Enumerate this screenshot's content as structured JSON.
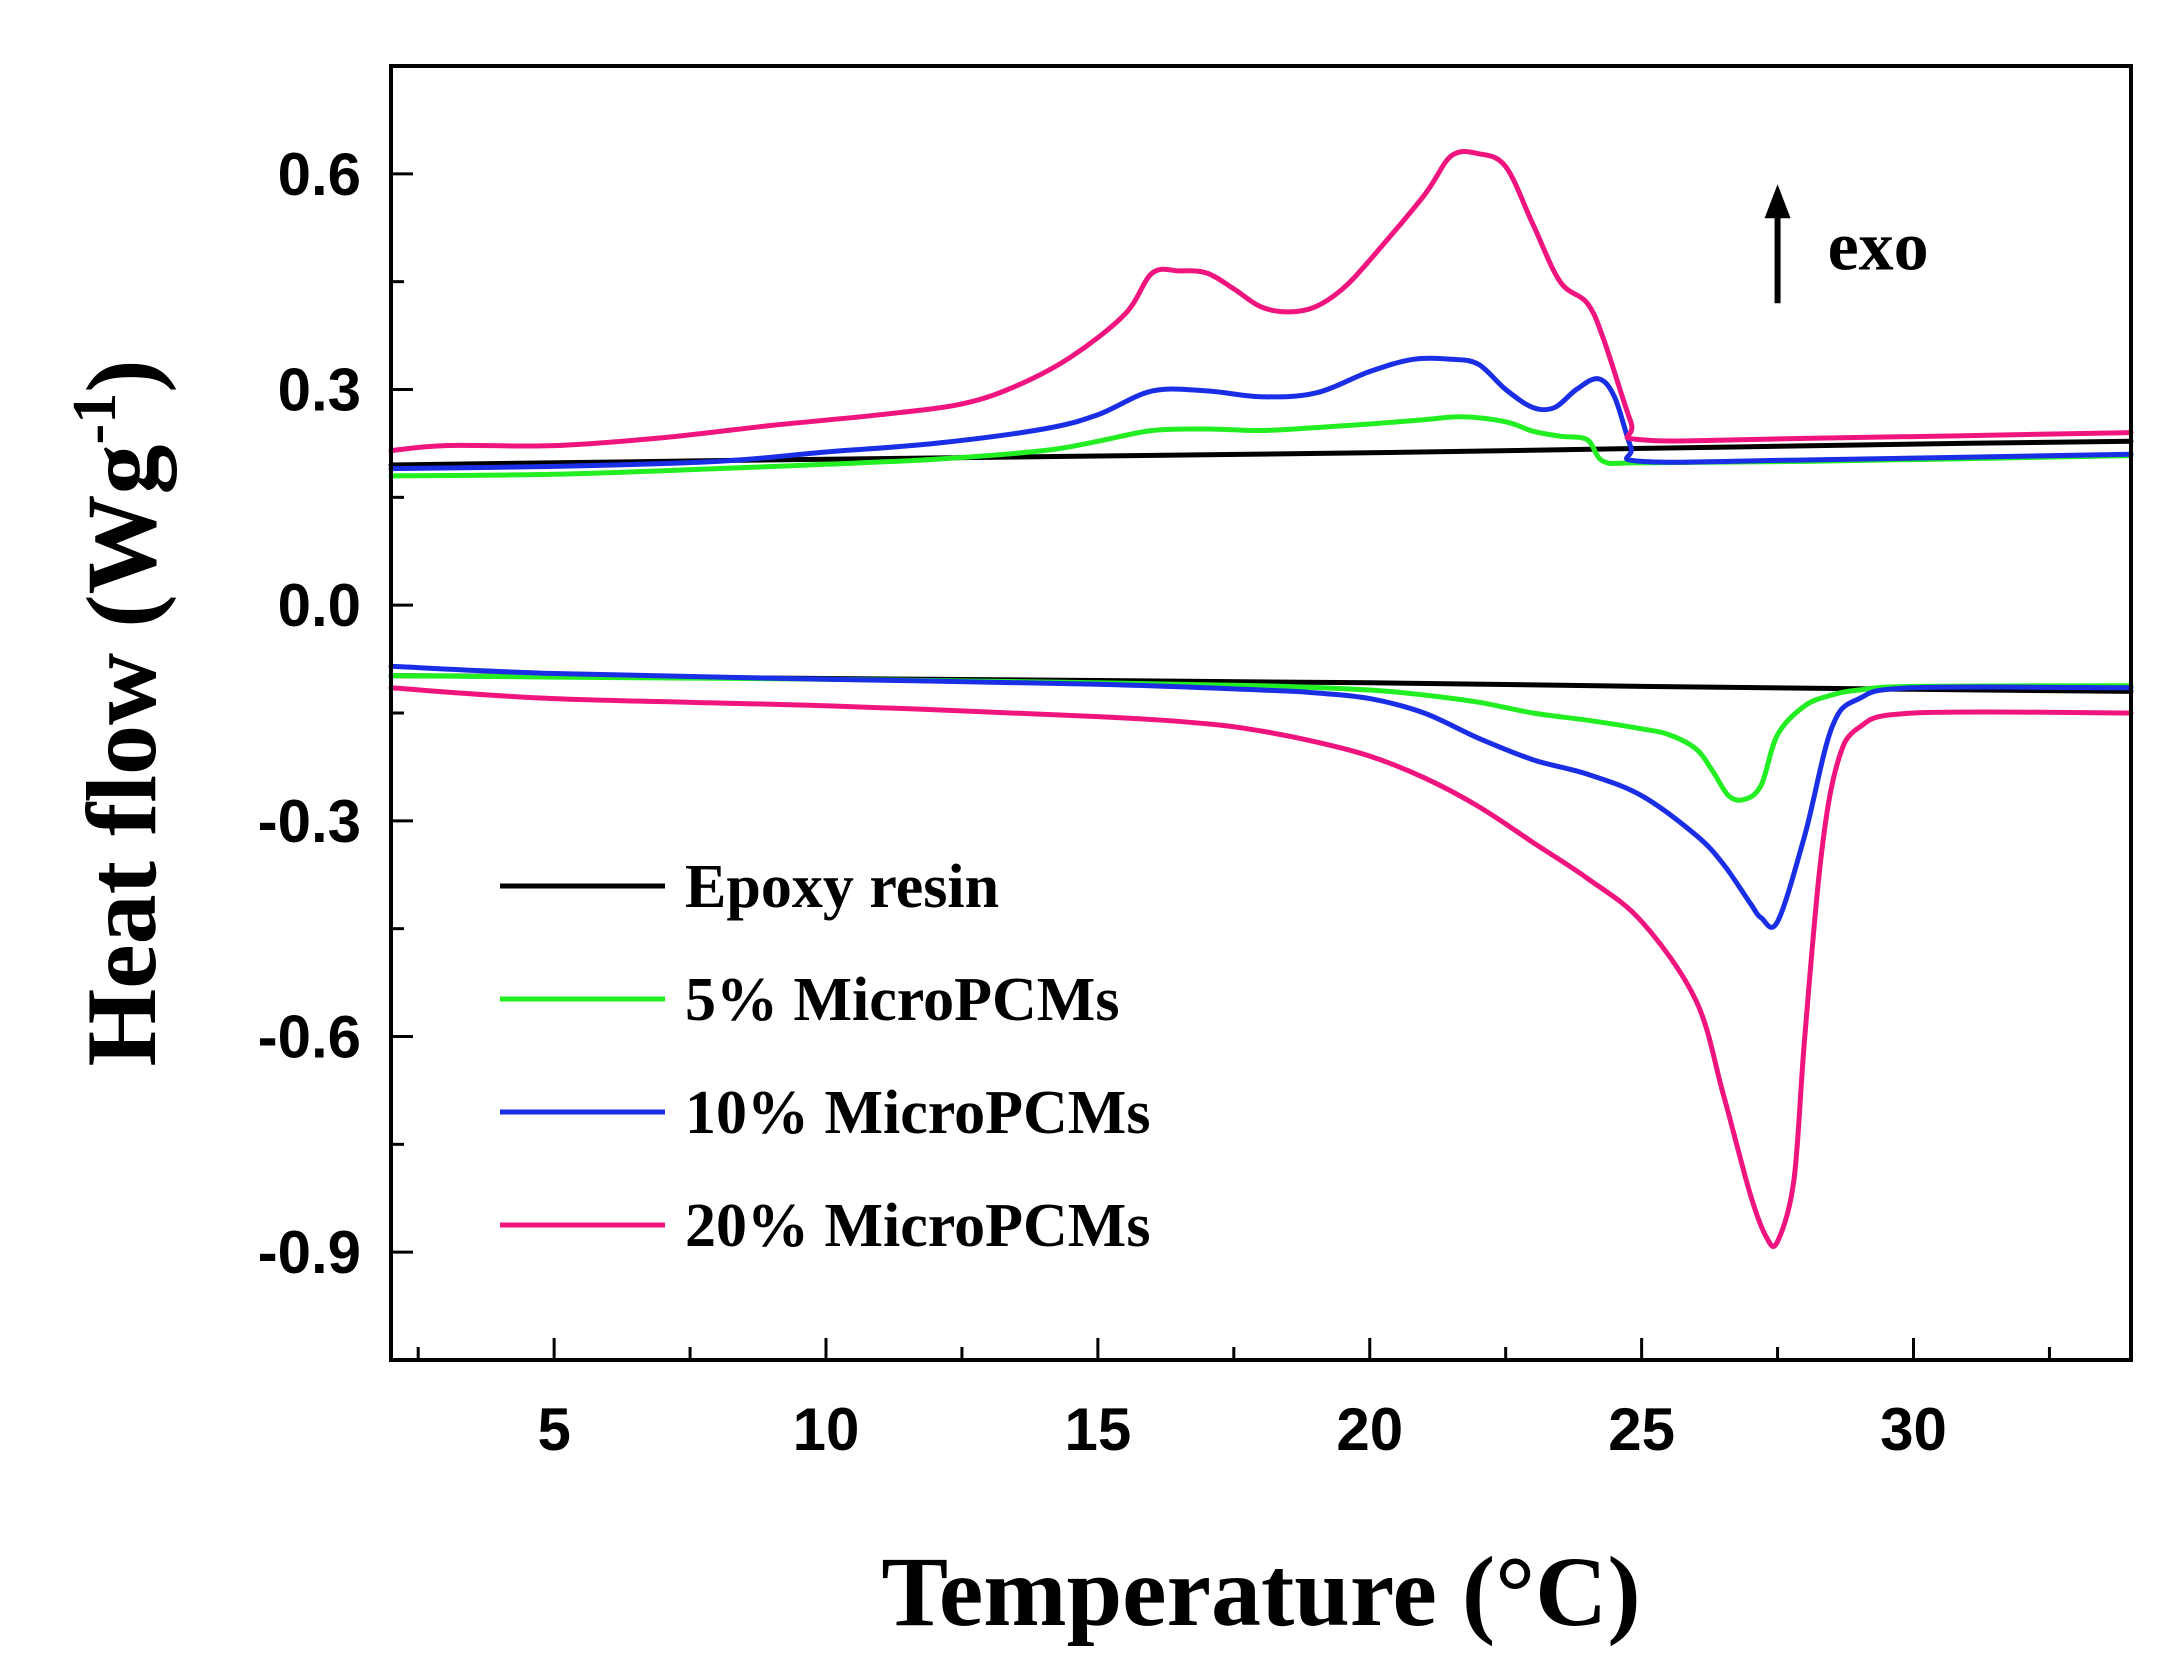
{
  "chart_data": {
    "type": "line",
    "title": "",
    "xlabel": "Temperature (°C)",
    "ylabel_main": "Heat flow (Wg",
    "ylabel_sup": "-1",
    "ylabel_close": ")",
    "xlim": [
      2,
      34
    ],
    "ylim": [
      -1.05,
      0.75
    ],
    "x_ticks": [
      5,
      10,
      15,
      20,
      25,
      30
    ],
    "x_tick_labels": [
      "5",
      "10",
      "15",
      "20",
      "25",
      "30"
    ],
    "y_ticks": [
      0.6,
      0.3,
      0.0,
      -0.3,
      -0.6,
      -0.9
    ],
    "y_tick_labels": [
      "0.6",
      "0.3",
      "0.0",
      "-0.3",
      "-0.6",
      "-0.9"
    ],
    "annotation": {
      "label": "exo",
      "direction": "up",
      "x": 27.5,
      "y_from": 0.42,
      "y_to": 0.58
    },
    "legend_position": "bottom-left",
    "series": [
      {
        "name": "Epoxy resin",
        "color": "#000000",
        "branch": "cooling",
        "x": [
          2,
          10,
          20,
          25,
          30,
          34
        ],
        "y": [
          0.195,
          0.203,
          0.212,
          0.218,
          0.224,
          0.228
        ]
      },
      {
        "name": "Epoxy resin",
        "color": "#000000",
        "branch": "heating",
        "x": [
          2,
          10,
          20,
          25,
          30,
          34
        ],
        "y": [
          -0.098,
          -0.102,
          -0.108,
          -0.113,
          -0.117,
          -0.12
        ]
      },
      {
        "name": "5% MicroPCMs",
        "color": "#22ee22",
        "branch": "cooling",
        "x": [
          2,
          5,
          8,
          10,
          12,
          14,
          15,
          16,
          17,
          18,
          19,
          20,
          21,
          21.7,
          22.5,
          23,
          23.5,
          24,
          24.3,
          25,
          28,
          34
        ],
        "y": [
          0.18,
          0.182,
          0.19,
          0.196,
          0.203,
          0.215,
          0.228,
          0.243,
          0.245,
          0.243,
          0.247,
          0.252,
          0.258,
          0.262,
          0.255,
          0.242,
          0.235,
          0.23,
          0.2,
          0.198,
          0.2,
          0.208
        ]
      },
      {
        "name": "5% MicroPCMs",
        "color": "#22ee22",
        "branch": "heating",
        "x": [
          2,
          5,
          10,
          15,
          18,
          20,
          21,
          22,
          23,
          24,
          25,
          25.5,
          26,
          26.3,
          26.6,
          26.9,
          27.2,
          27.5,
          28,
          28.5,
          29,
          30,
          34
        ],
        "y": [
          -0.098,
          -0.1,
          -0.103,
          -0.108,
          -0.112,
          -0.118,
          -0.125,
          -0.135,
          -0.15,
          -0.16,
          -0.172,
          -0.18,
          -0.2,
          -0.23,
          -0.265,
          -0.27,
          -0.25,
          -0.18,
          -0.14,
          -0.125,
          -0.118,
          -0.113,
          -0.112
        ]
      },
      {
        "name": "10% MicroPCMs",
        "color": "#1a2ee6",
        "branch": "cooling",
        "x": [
          2,
          5,
          8,
          10,
          12,
          14,
          15,
          16,
          17,
          18,
          19,
          20,
          20.8,
          21.5,
          22,
          22.5,
          23,
          23.4,
          23.8,
          24.2,
          24.5,
          24.8,
          25,
          28,
          34
        ],
        "y": [
          0.19,
          0.193,
          0.2,
          0.213,
          0.225,
          0.245,
          0.265,
          0.298,
          0.298,
          0.29,
          0.295,
          0.325,
          0.342,
          0.342,
          0.335,
          0.3,
          0.275,
          0.275,
          0.3,
          0.315,
          0.29,
          0.22,
          0.2,
          0.202,
          0.21
        ]
      },
      {
        "name": "10% MicroPCMs",
        "color": "#1a2ee6",
        "branch": "heating",
        "x": [
          2,
          5,
          10,
          15,
          18,
          19,
          20,
          21,
          22,
          23,
          24,
          25,
          26,
          26.5,
          27,
          27.2,
          27.5,
          28,
          28.5,
          29,
          30,
          34
        ],
        "y": [
          -0.085,
          -0.095,
          -0.103,
          -0.11,
          -0.118,
          -0.122,
          -0.13,
          -0.15,
          -0.185,
          -0.215,
          -0.235,
          -0.265,
          -0.32,
          -0.36,
          -0.415,
          -0.435,
          -0.44,
          -0.32,
          -0.17,
          -0.13,
          -0.115,
          -0.115
        ]
      },
      {
        "name": "20% MicroPCMs",
        "color": "#f0147e",
        "branch": "cooling",
        "x": [
          2,
          3,
          5,
          7,
          9,
          11,
          12.5,
          13.5,
          14.5,
          15.5,
          16,
          16.5,
          17,
          17.5,
          18,
          18.5,
          19,
          19.5,
          20,
          21,
          21.5,
          22,
          22.5,
          23,
          23.5,
          24,
          24.3,
          24.8,
          25,
          28,
          34
        ],
        "y": [
          0.215,
          0.222,
          0.222,
          0.233,
          0.25,
          0.265,
          0.28,
          0.305,
          0.345,
          0.405,
          0.462,
          0.465,
          0.462,
          0.44,
          0.415,
          0.408,
          0.415,
          0.44,
          0.48,
          0.57,
          0.625,
          0.628,
          0.61,
          0.53,
          0.45,
          0.42,
          0.37,
          0.255,
          0.23,
          0.232,
          0.24
        ]
      },
      {
        "name": "20% MicroPCMs",
        "color": "#f0147e",
        "branch": "heating",
        "x": [
          2,
          5,
          10,
          15,
          17,
          18,
          19,
          20,
          21,
          22,
          23,
          24,
          25,
          26,
          26.5,
          27,
          27.3,
          27.5,
          27.8,
          28,
          28.3,
          28.6,
          29,
          30,
          34
        ],
        "y": [
          -0.115,
          -0.13,
          -0.14,
          -0.155,
          -0.165,
          -0.175,
          -0.19,
          -0.21,
          -0.24,
          -0.28,
          -0.33,
          -0.38,
          -0.44,
          -0.55,
          -0.68,
          -0.82,
          -0.88,
          -0.885,
          -0.8,
          -0.6,
          -0.35,
          -0.22,
          -0.17,
          -0.15,
          -0.15
        ]
      }
    ],
    "legend": [
      {
        "label": "Epoxy resin",
        "color": "#000000"
      },
      {
        "label": "5% MicroPCMs",
        "color": "#22ee22"
      },
      {
        "label": "10% MicroPCMs",
        "color": "#1a2ee6"
      },
      {
        "label": "20% MicroPCMs",
        "color": "#f0147e"
      }
    ]
  }
}
